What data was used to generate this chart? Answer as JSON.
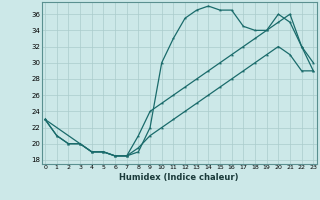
{
  "xlabel": "Humidex (Indice chaleur)",
  "bg_color": "#cce8e8",
  "grid_color": "#aacccc",
  "line_color": "#1a6b6b",
  "yticks": [
    18,
    20,
    22,
    24,
    26,
    28,
    30,
    32,
    34,
    36
  ],
  "xticks": [
    0,
    1,
    2,
    3,
    4,
    5,
    6,
    7,
    8,
    9,
    10,
    11,
    12,
    13,
    14,
    15,
    16,
    17,
    18,
    19,
    20,
    21,
    22,
    23
  ],
  "line1_x": [
    0,
    1,
    2,
    3,
    4,
    5,
    6,
    7,
    8,
    9,
    10,
    11,
    12,
    13,
    14,
    15,
    16,
    17,
    18,
    19,
    20,
    21,
    22,
    23
  ],
  "line1_y": [
    23,
    21,
    20,
    20,
    19,
    19,
    18.5,
    18.5,
    19,
    22,
    30,
    33,
    35.5,
    36.5,
    37,
    36.5,
    36.5,
    34.5,
    34,
    34,
    36,
    35,
    32,
    30
  ],
  "line2_x": [
    0,
    3,
    4,
    5,
    6,
    7,
    8,
    9,
    10,
    11,
    12,
    13,
    14,
    15,
    16,
    17,
    18,
    19,
    20,
    21,
    22,
    23
  ],
  "line2_y": [
    23,
    20,
    19,
    19,
    18.5,
    18.5,
    21,
    24,
    25,
    26,
    27,
    28,
    29,
    30,
    31,
    32,
    33,
    34,
    35,
    36,
    32,
    29
  ],
  "line3_x": [
    0,
    1,
    2,
    3,
    4,
    5,
    6,
    7,
    8,
    9,
    10,
    11,
    12,
    13,
    14,
    15,
    16,
    17,
    18,
    19,
    20,
    21,
    22,
    23
  ],
  "line3_y": [
    23,
    21,
    20,
    20,
    19,
    19,
    18.5,
    18.5,
    19.5,
    21,
    22,
    23,
    24,
    25,
    26,
    27,
    28,
    29,
    30,
    31,
    32,
    31,
    29,
    29
  ]
}
